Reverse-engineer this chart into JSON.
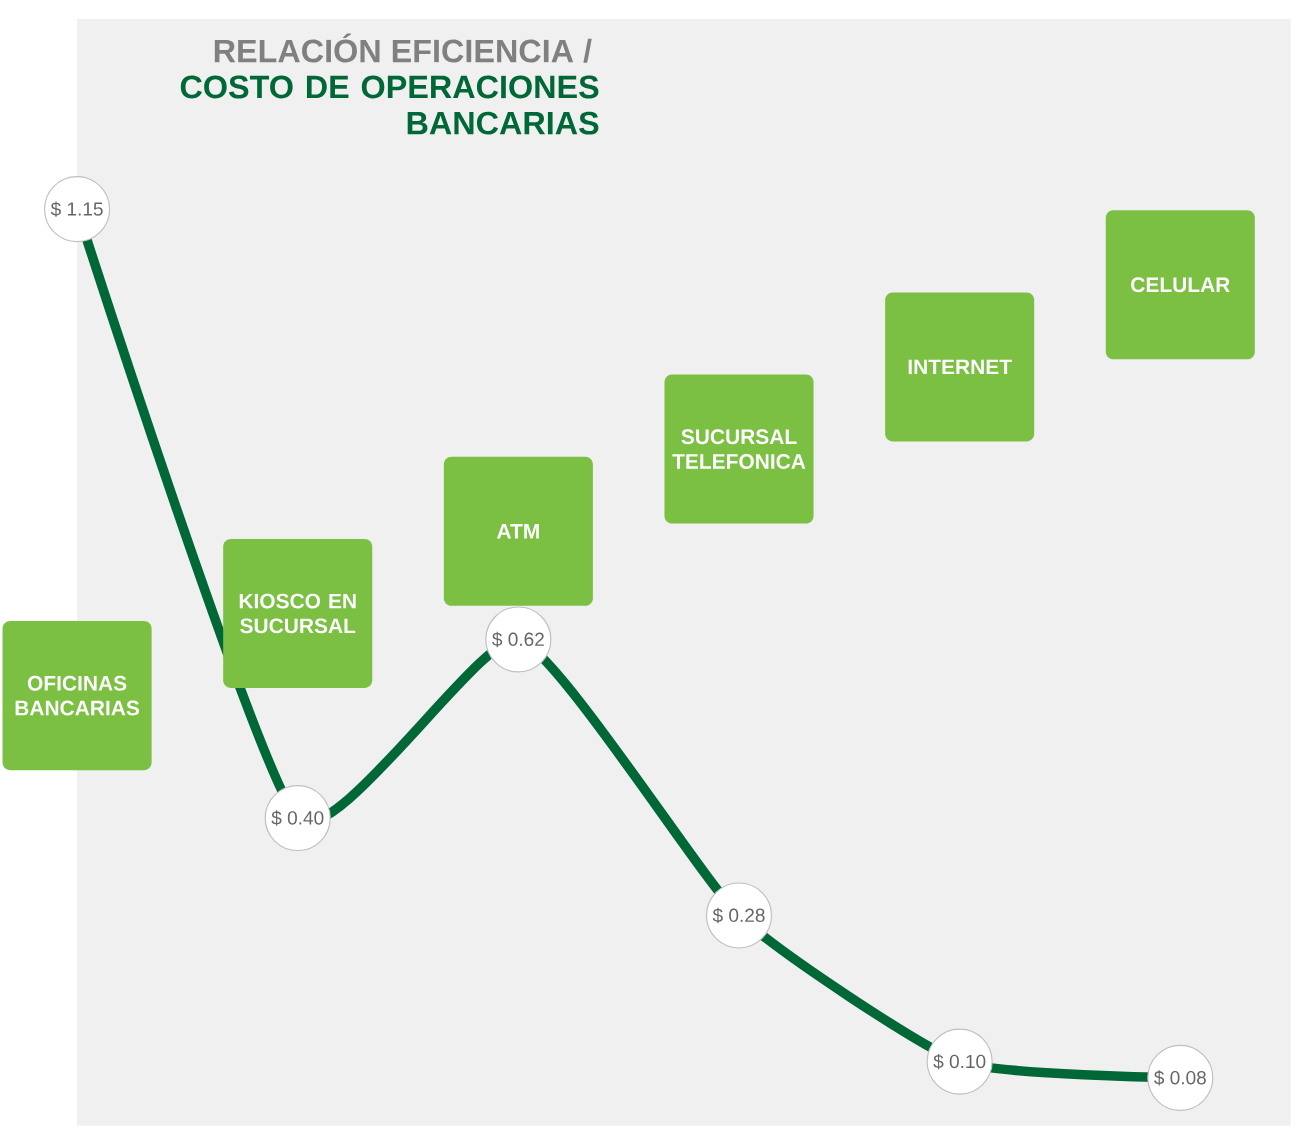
{
  "chart_data": {
    "type": "line",
    "title": "RELACIÓN EFICIENCIA /",
    "subtitle": "COSTO DE OPERACIONES BANCARIAS",
    "categories": [
      "OFICINAS BANCARIAS",
      "KIOSCO EN SUCURSAL",
      "ATM",
      "SUCURSAL TELEFONICA",
      "INTERNET",
      "CELULAR"
    ],
    "values": [
      1.15,
      0.4,
      0.62,
      0.28,
      0.1,
      0.08
    ],
    "value_labels": [
      "$ 1.15",
      "$ 0.40",
      "$ 0.62",
      "$ 0.28",
      "$ 0.10",
      "$ 0.08"
    ],
    "color": "#006837",
    "marker": "circle",
    "line_style": "solid"
  }
}
